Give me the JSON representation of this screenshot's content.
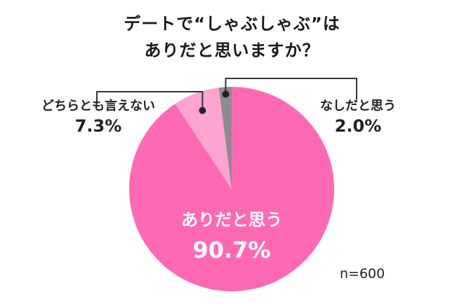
{
  "title": {
    "line1": "デートで“しゃぶしゃぶ”は",
    "line2": "ありだと思いますか？"
  },
  "sample_note": "n=600",
  "chart_data": {
    "type": "pie",
    "title": "デートで“しゃぶしゃぶ”は ありだと思いますか？",
    "slices": [
      {
        "label": "ありだと思う",
        "value": 90.7,
        "value_label": "90.7%",
        "color": "#ff69b4"
      },
      {
        "label": "どちらとも言えない",
        "value": 7.3,
        "value_label": "7.3%",
        "color": "#ffa3d1"
      },
      {
        "label": "なしだと思う",
        "value": 2.0,
        "value_label": "2.0%",
        "color": "#8c8c8c"
      }
    ],
    "start_angle_deg": 0,
    "direction": "clockwise-from-top, ありだと思う first",
    "legend": "none (labels on/next to slices)"
  }
}
